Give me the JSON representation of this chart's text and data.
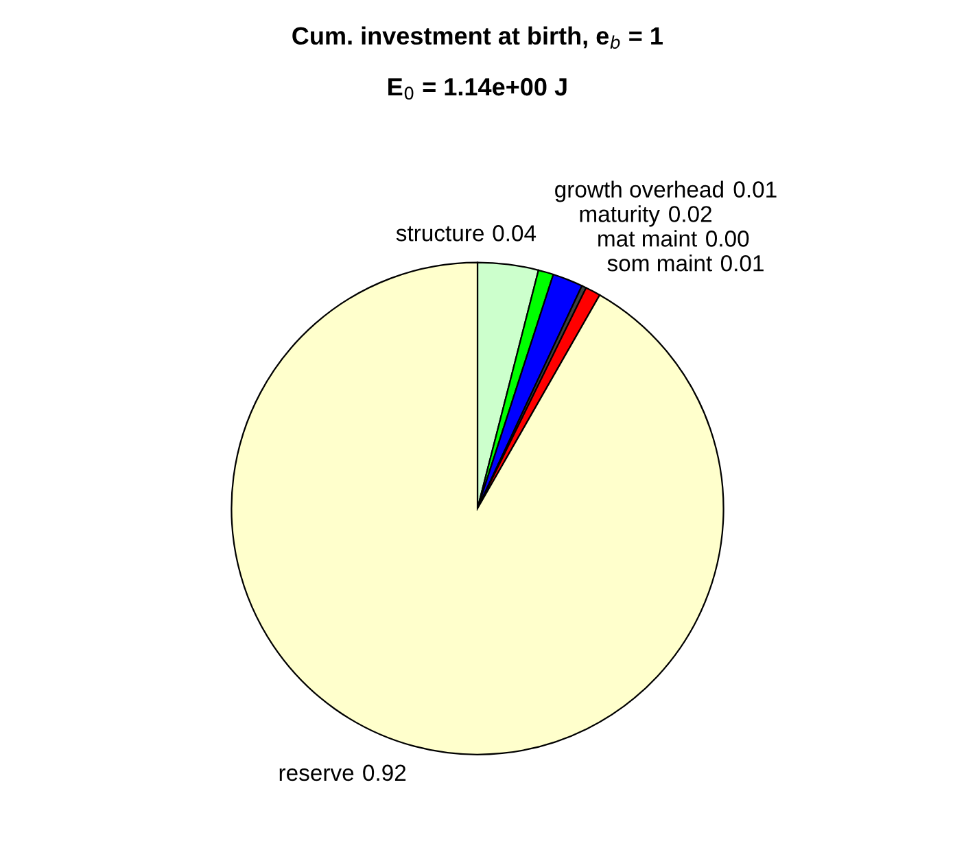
{
  "chart_data": {
    "type": "pie",
    "title": "Cum. investment at birth, e$_{b}$ = 1",
    "subtitle": "E$_{0}$ = 1.14e+00 J",
    "categories": [
      "structure",
      "growth overhead",
      "maturity",
      "mat maint",
      "som maint",
      "reserve"
    ],
    "values": [
      0.04,
      0.01,
      0.02,
      0.003,
      0.01,
      0.92
    ],
    "value_labels": [
      "0.04",
      "0.01",
      "0.02",
      "0.00",
      "0.01",
      "0.92"
    ],
    "colors": [
      "#ccffcc",
      "#00ff00",
      "#0000ff",
      "#404040",
      "#ff0000",
      "#ffffcc"
    ]
  }
}
